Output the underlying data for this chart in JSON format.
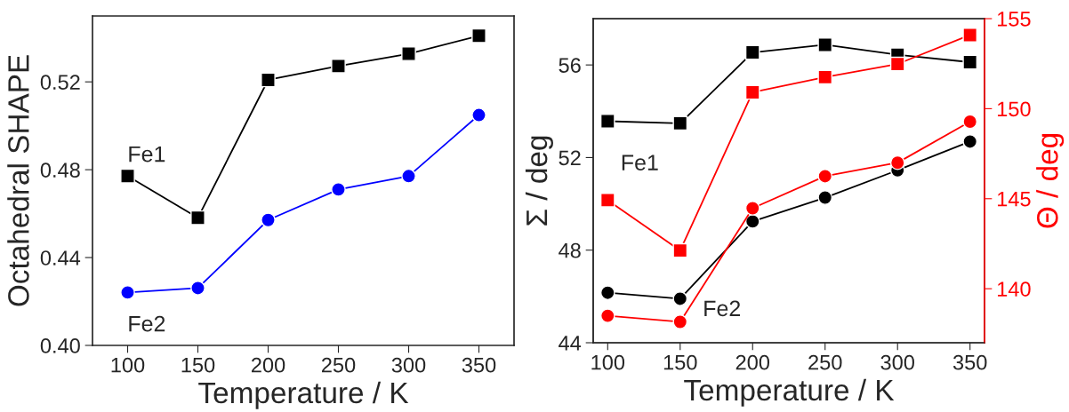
{
  "chart_data": [
    {
      "type": "line",
      "xlabel": "Temperature / K",
      "ylabel": "Octahedral SHAPE",
      "x": [
        100,
        150,
        200,
        250,
        300,
        350
      ],
      "series": [
        {
          "color": "#000000",
          "marker": "square",
          "values": [
            0.4771,
            0.4581,
            0.5209,
            0.5272,
            0.5328,
            0.541
          ]
        },
        {
          "color": "#0000ff",
          "marker": "circle",
          "values": [
            0.4241,
            0.4261,
            0.4571,
            0.471,
            0.4771,
            0.5049
          ]
        }
      ],
      "xlim": [
        75,
        375
      ],
      "xticks": [
        100,
        150,
        200,
        250,
        300,
        350
      ],
      "ylim": [
        0.4,
        0.55
      ],
      "yticks": [
        {
          "value": 0.4,
          "label": "0.40"
        },
        {
          "value": 0.44,
          "label": "0.44"
        },
        {
          "value": 0.48,
          "label": "0.48"
        },
        {
          "value": 0.52,
          "label": "0.52"
        }
      ],
      "annotations": [
        "Fe1",
        "Fe2"
      ],
      "grid": false,
      "legend": false
    },
    {
      "type": "line",
      "xlabel": "Temperature / K",
      "ylabel": "Σ / deg",
      "y2label": "Θ / deg",
      "x": [
        100,
        150,
        200,
        250,
        300,
        350
      ],
      "series": [
        {
          "color": "#000000",
          "marker": "square",
          "values": [
            53.57,
            53.48,
            56.54,
            56.87,
            56.44,
            56.12
          ]
        },
        {
          "color": "#000000",
          "marker": "circle",
          "values": [
            46.16,
            45.9,
            49.24,
            50.27,
            51.45,
            52.69
          ]
        },
        {
          "color": "#ff0000",
          "marker": "square",
          "axis": "y2",
          "values": [
            144.92,
            142.12,
            150.91,
            151.75,
            152.48,
            154.09
          ]
        },
        {
          "color": "#ff0000",
          "marker": "circle",
          "axis": "y2",
          "values": [
            138.5,
            138.16,
            144.47,
            146.25,
            147.0,
            149.28
          ]
        }
      ],
      "xlim": [
        90,
        360
      ],
      "xticks": [
        100,
        150,
        200,
        250,
        300,
        350
      ],
      "ylim": [
        44,
        58
      ],
      "yticks": [
        44,
        48,
        52,
        56
      ],
      "y2lim": [
        137,
        155
      ],
      "y2ticks": [
        140,
        145,
        150,
        155
      ],
      "annotations": [
        "Fe1",
        "Fe2"
      ],
      "grid": false,
      "legend": false
    }
  ]
}
